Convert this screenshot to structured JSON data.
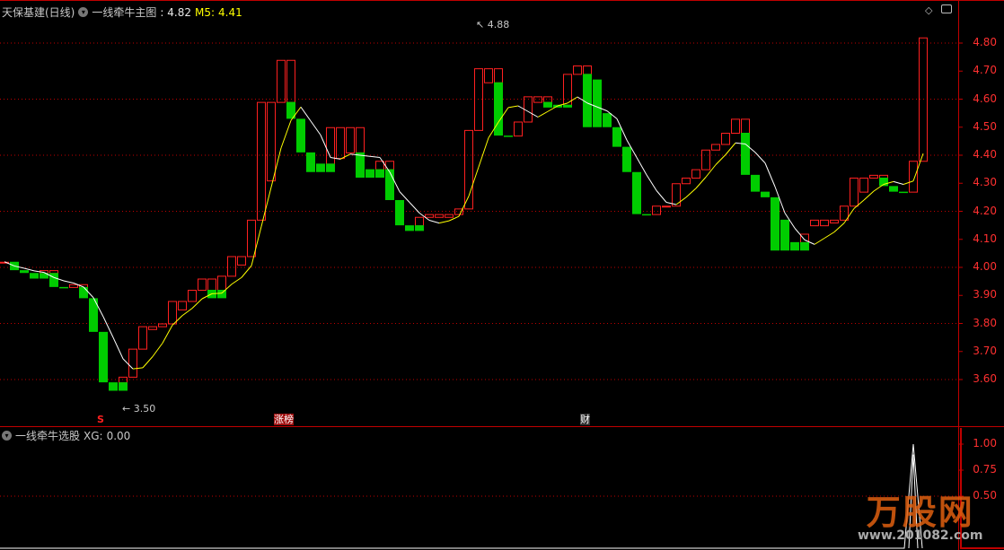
{
  "header": {
    "stock_name": "天保基建(日线)",
    "indicator_name": "一线牵牛主图",
    "price_label": ": 4.82",
    "ma_label": "M5:",
    "ma_value": "4.41"
  },
  "sub_header": {
    "indicator_name": "一线牵牛选股",
    "xg_label": "XG:",
    "xg_value": "0.00"
  },
  "annotations": {
    "high": "4.88",
    "low": "3.50"
  },
  "signals": {
    "s": "S",
    "zhang_bang": "涨榜",
    "cai": "财"
  },
  "logo": {
    "text": "万股网",
    "url": "www.201082.com"
  },
  "colors": {
    "up": "#ff2020",
    "down": "#00cc00",
    "ma_up": "#ffff00",
    "ma_down": "#ffffff",
    "grid": "#c00000",
    "axis": "#ff3030"
  },
  "chart_data": [
    {
      "type": "candlestick",
      "y_ticks": [
        "4.80",
        "4.70",
        "4.60",
        "4.50",
        "4.40",
        "4.30",
        "4.20",
        "4.10",
        "4.00",
        "3.90",
        "3.80",
        "3.70",
        "3.60"
      ],
      "ylim": [
        3.5,
        4.88
      ],
      "grid": "dotted every 0.20",
      "boxes_note_fields": [
        "red_top",
        "red_bottom",
        "green_top",
        "green_bottom"
      ],
      "candles": [
        [
          4.02,
          4.02,
          null,
          null
        ],
        [
          null,
          null,
          4.02,
          3.99
        ],
        [
          null,
          null,
          3.99,
          3.98
        ],
        [
          null,
          null,
          3.98,
          3.96
        ],
        [
          3.99,
          3.98,
          3.98,
          3.96
        ],
        [
          3.99,
          3.98,
          3.98,
          3.93
        ],
        [
          null,
          null,
          3.93,
          3.93
        ],
        [
          3.94,
          3.93,
          null,
          null
        ],
        [
          3.94,
          3.93,
          3.93,
          3.89
        ],
        [
          null,
          null,
          3.89,
          3.77
        ],
        [
          null,
          null,
          3.77,
          3.59
        ],
        [
          null,
          null,
          3.59,
          3.56
        ],
        [
          3.61,
          3.59,
          3.59,
          3.56
        ],
        [
          3.71,
          3.61,
          null,
          null
        ],
        [
          3.79,
          3.71,
          null,
          null
        ],
        [
          3.79,
          3.78,
          null,
          null
        ],
        [
          3.8,
          3.79,
          null,
          null
        ],
        [
          3.88,
          3.8,
          null,
          null
        ],
        [
          3.88,
          3.85,
          null,
          null
        ],
        [
          3.92,
          3.88,
          null,
          null
        ],
        [
          3.96,
          3.92,
          null,
          null
        ],
        [
          3.96,
          3.92,
          3.92,
          3.89
        ],
        [
          3.97,
          3.92,
          3.92,
          3.89
        ],
        [
          4.04,
          3.97,
          null,
          null
        ],
        [
          4.04,
          4.01,
          null,
          null
        ],
        [
          4.17,
          4.04,
          null,
          null
        ],
        [
          4.59,
          4.17,
          null,
          null
        ],
        [
          4.59,
          4.31,
          null,
          null
        ],
        [
          4.74,
          4.59,
          null,
          null
        ],
        [
          4.74,
          4.59,
          4.59,
          4.53
        ],
        [
          null,
          null,
          4.53,
          4.41
        ],
        [
          null,
          null,
          4.41,
          4.34
        ],
        [
          null,
          null,
          4.37,
          4.34
        ],
        [
          4.5,
          4.37,
          4.37,
          4.34
        ],
        [
          4.5,
          4.39,
          null,
          null
        ],
        [
          4.5,
          4.41,
          null,
          null
        ],
        [
          4.5,
          4.41,
          4.41,
          4.32
        ],
        [
          null,
          null,
          4.35,
          4.32
        ],
        [
          4.38,
          4.35,
          4.35,
          4.32
        ],
        [
          4.38,
          4.35,
          4.35,
          4.24
        ],
        [
          null,
          null,
          4.24,
          4.15
        ],
        [
          null,
          null,
          4.15,
          4.13
        ],
        [
          4.18,
          4.15,
          4.15,
          4.13
        ],
        [
          4.19,
          4.18,
          null,
          null
        ],
        [
          4.19,
          4.18,
          null,
          null
        ],
        [
          4.19,
          4.18,
          null,
          null
        ],
        [
          4.21,
          4.19,
          null,
          null
        ],
        [
          4.49,
          4.21,
          null,
          null
        ],
        [
          4.71,
          4.49,
          null,
          null
        ],
        [
          4.71,
          4.66,
          null,
          null
        ],
        [
          4.71,
          4.66,
          4.66,
          4.47
        ],
        [
          null,
          null,
          4.47,
          4.47
        ],
        [
          4.52,
          4.47,
          null,
          null
        ],
        [
          4.61,
          4.52,
          null,
          null
        ],
        [
          4.61,
          4.59,
          null,
          null
        ],
        [
          4.61,
          4.59,
          4.59,
          4.57
        ],
        [
          null,
          null,
          4.58,
          4.57
        ],
        [
          4.69,
          4.58,
          4.58,
          4.57
        ],
        [
          4.72,
          4.69,
          null,
          null
        ],
        [
          4.72,
          4.69,
          4.69,
          4.5
        ],
        [
          null,
          null,
          4.67,
          4.5
        ],
        [
          null,
          null,
          4.55,
          4.5
        ],
        [
          null,
          null,
          4.5,
          4.43
        ],
        [
          null,
          null,
          4.43,
          4.34
        ],
        [
          null,
          null,
          4.34,
          4.19
        ],
        [
          null,
          null,
          4.19,
          4.19
        ],
        [
          4.22,
          4.19,
          null,
          null
        ],
        [
          4.22,
          4.22,
          null,
          null
        ],
        [
          4.3,
          4.22,
          null,
          null
        ],
        [
          4.32,
          4.3,
          null,
          null
        ],
        [
          4.35,
          4.32,
          null,
          null
        ],
        [
          4.42,
          4.35,
          null,
          null
        ],
        [
          4.44,
          4.42,
          null,
          null
        ],
        [
          4.48,
          4.44,
          null,
          null
        ],
        [
          4.53,
          4.48,
          null,
          null
        ],
        [
          4.53,
          4.48,
          4.48,
          4.33
        ],
        [
          null,
          null,
          4.33,
          4.27
        ],
        [
          null,
          null,
          4.27,
          4.25
        ],
        [
          null,
          null,
          4.25,
          4.06
        ],
        [
          null,
          null,
          4.17,
          4.06
        ],
        [
          null,
          null,
          4.09,
          4.06
        ],
        [
          4.12,
          4.09,
          4.09,
          4.06
        ],
        [
          4.17,
          4.15,
          null,
          null
        ],
        [
          4.17,
          4.15,
          null,
          null
        ],
        [
          4.17,
          4.16,
          null,
          null
        ],
        [
          4.22,
          4.17,
          null,
          null
        ],
        [
          4.32,
          4.22,
          null,
          null
        ],
        [
          4.32,
          4.27,
          null,
          null
        ],
        [
          4.33,
          4.32,
          null,
          null
        ],
        [
          4.33,
          4.32,
          4.32,
          4.29
        ],
        [
          null,
          null,
          4.29,
          4.27
        ],
        [
          null,
          null,
          4.27,
          4.27
        ],
        [
          4.38,
          4.27,
          null,
          null
        ],
        [
          4.82,
          4.38,
          null,
          null
        ]
      ],
      "ma_period": 5
    },
    {
      "type": "line",
      "name": "XG",
      "y_ticks": [
        "1.00",
        "0.75",
        "0.50"
      ],
      "ylim": [
        0,
        1
      ],
      "signal_index": 92,
      "values_note": "0 everywhere except 1.00 at signal_index"
    }
  ]
}
